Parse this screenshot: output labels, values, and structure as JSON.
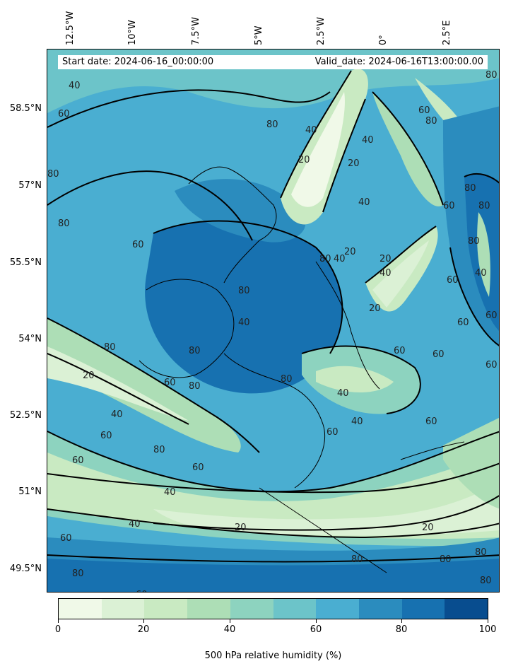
{
  "header": {
    "start_date": "Start date: 2024-06-16_00:00:00",
    "valid_date": "Valid_date: 2024-06-16T13:00:00.00"
  },
  "axes": {
    "latitude_labels": [
      "58.5°N",
      "57°N",
      "55.5°N",
      "54°N",
      "52.5°N",
      "51°N",
      "49.5°N"
    ],
    "longitude_labels": [
      "12.5°W",
      "10°W",
      "7.5°W",
      "5°W",
      "2.5°W",
      "0°",
      "2.5°E"
    ]
  },
  "contour_labels": [
    "40",
    "60",
    "80",
    "80",
    "60",
    "20",
    "40",
    "40",
    "80",
    "60",
    "80",
    "80",
    "80",
    "40",
    "20",
    "80",
    "60",
    "40",
    "60",
    "20",
    "20",
    "40",
    "80",
    "80",
    "60",
    "60",
    "80",
    "40",
    "40",
    "60",
    "60",
    "80",
    "80",
    "60",
    "20",
    "40",
    "40",
    "60",
    "60",
    "60",
    "60",
    "40",
    "20",
    "20",
    "40",
    "60",
    "80",
    "80",
    "80",
    "60",
    "80",
    "80",
    "40",
    "60",
    "60",
    "20",
    "80",
    "80",
    "80"
  ],
  "colorbar": {
    "title": "500 hPa relative humidity (%)",
    "tick_labels": [
      "0",
      "20",
      "40",
      "60",
      "80",
      "100"
    ],
    "colors": [
      "#f0f9e8",
      "#dbf1d5",
      "#c9eac2",
      "#addeb6",
      "#8dd3bf",
      "#6cc4c9",
      "#4aaed1",
      "#2b8cbe",
      "#1771b0",
      "#084d8f"
    ]
  }
}
